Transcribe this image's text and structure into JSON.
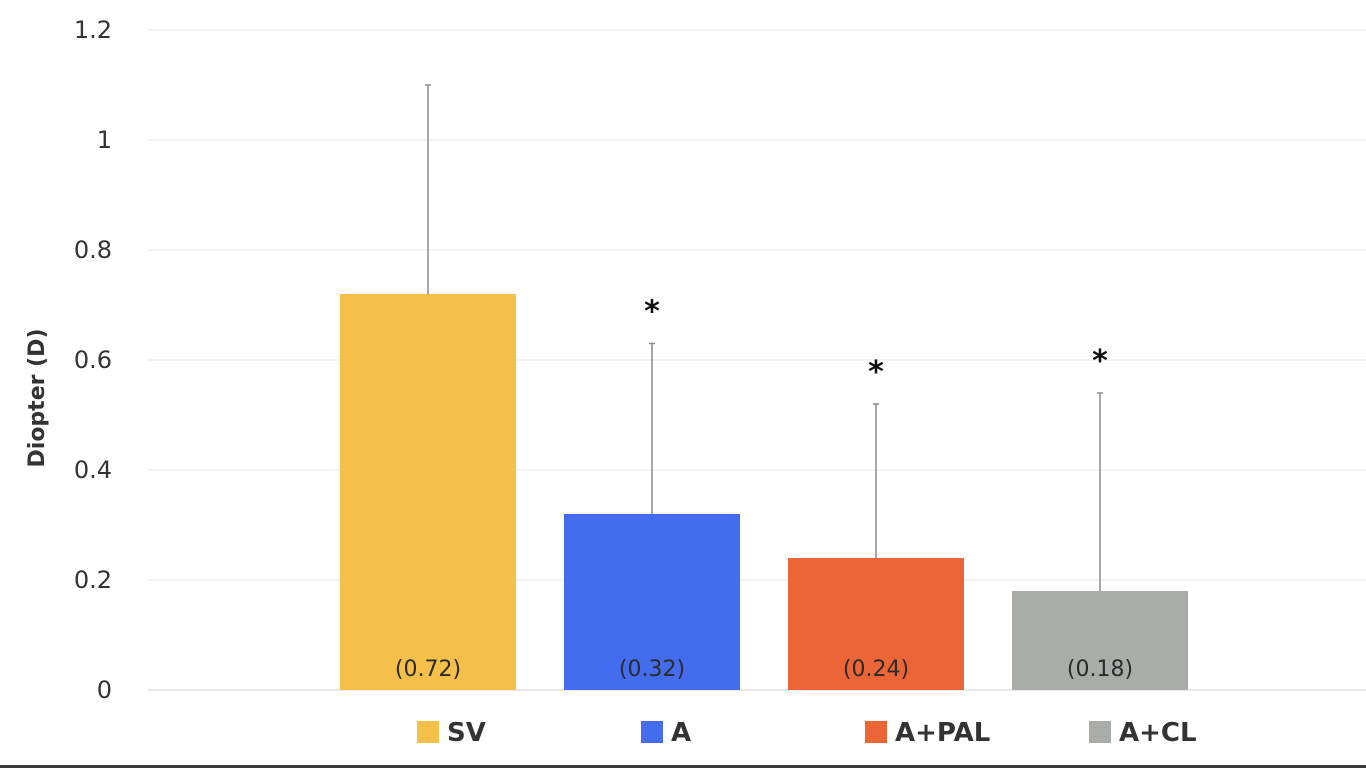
{
  "chart_data": {
    "type": "bar",
    "title": "",
    "xlabel": "",
    "ylabel": "Diopter (D)",
    "ylim": [
      0,
      1.2
    ],
    "yticks": [
      0,
      0.2,
      0.4,
      0.6,
      0.8,
      1,
      1.2
    ],
    "ytick_labels": [
      "0",
      "0.2",
      "0.4",
      "0.6",
      "0.8",
      "1",
      "1.2"
    ],
    "grid": true,
    "legend_position": "bottom",
    "categories": [
      "SV",
      "A",
      "A+PAL",
      "A+CL"
    ],
    "values": [
      0.72,
      0.32,
      0.24,
      0.18
    ],
    "error_upper": [
      0.38,
      0.31,
      0.28,
      0.36
    ],
    "value_labels": [
      "(0.72)",
      "(0.32)",
      "(0.24)",
      "(0.18)"
    ],
    "significance": [
      "",
      "*",
      "*",
      "*"
    ],
    "colors": [
      "#F4C04A",
      "#436CEE",
      "#EC6536",
      "#A9ADAA"
    ]
  }
}
